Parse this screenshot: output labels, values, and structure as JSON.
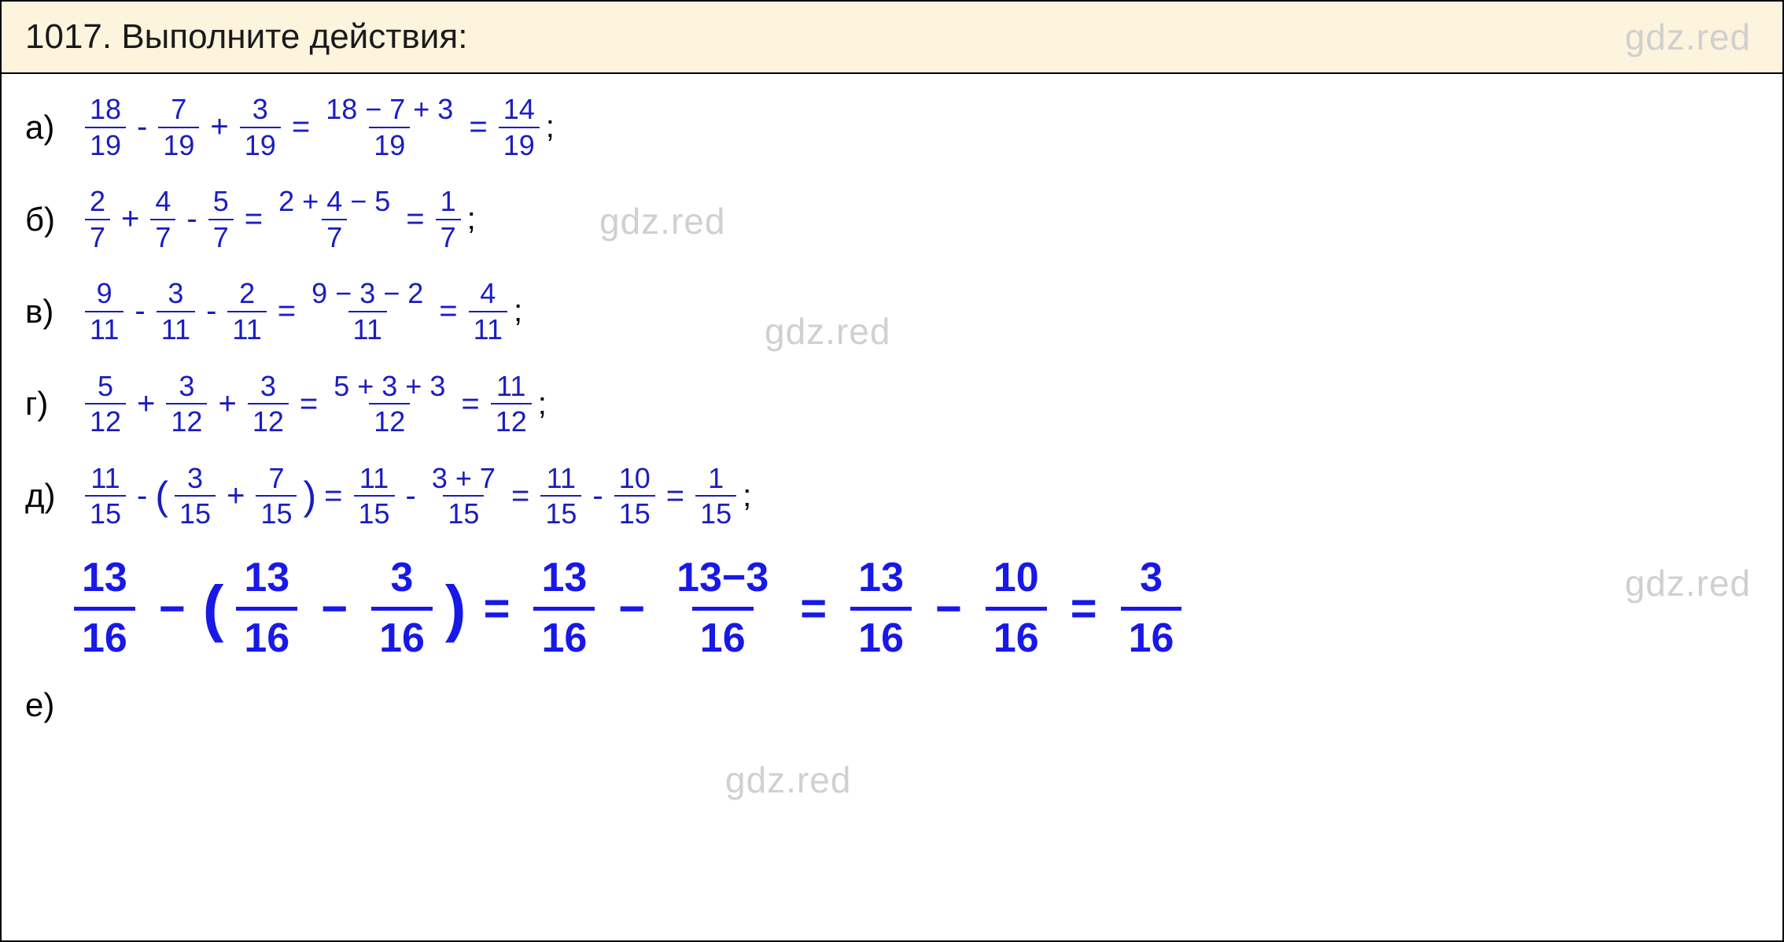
{
  "header": {
    "title": "1017. Выполните действия:"
  },
  "watermark": "gdz.red",
  "colors": {
    "header_bg": "#fcf4dd",
    "border": "#000000",
    "math_color": "#1a1dc0",
    "math_bold_color": "#1818e8",
    "text_color": "#000000",
    "watermark_color": "#d0d0d0"
  },
  "typography": {
    "header_fontsize": 44,
    "label_fontsize": 42,
    "frac_fontsize": 36,
    "op_fontsize": 40,
    "big_frac_fontsize": 52,
    "big_op_fontsize": 58
  },
  "rows": {
    "a": {
      "label": "а)",
      "f1_num": "18",
      "f1_den": "19",
      "op1": "-",
      "f2_num": "7",
      "f2_den": "19",
      "op2": "+",
      "f3_num": "3",
      "f3_den": "19",
      "eq1": "=",
      "f4_num": "18 − 7 + 3",
      "f4_den": "19",
      "eq2": "=",
      "f5_num": "14",
      "f5_den": "19",
      "end": ";"
    },
    "b": {
      "label": "б)",
      "f1_num": "2",
      "f1_den": "7",
      "op1": "+",
      "f2_num": "4",
      "f2_den": "7",
      "op2": "-",
      "f3_num": "5",
      "f3_den": "7",
      "eq1": "=",
      "f4_num": "2 + 4 − 5",
      "f4_den": "7",
      "eq2": "=",
      "f5_num": "1",
      "f5_den": "7",
      "end": ";"
    },
    "v": {
      "label": "в)",
      "f1_num": "9",
      "f1_den": "11",
      "op1": "-",
      "f2_num": "3",
      "f2_den": "11",
      "op2": "-",
      "f3_num": "2",
      "f3_den": "11",
      "eq1": "=",
      "f4_num": "9 − 3 − 2",
      "f4_den": "11",
      "eq2": "=",
      "f5_num": "4",
      "f5_den": "11",
      "end": ";"
    },
    "g": {
      "label": "г)",
      "f1_num": "5",
      "f1_den": "12",
      "op1": "+",
      "f2_num": "3",
      "f2_den": "12",
      "op2": "+",
      "f3_num": "3",
      "f3_den": "12",
      "eq1": "=",
      "f4_num": "5 + 3 + 3",
      "f4_den": "12",
      "eq2": "=",
      "f5_num": "11",
      "f5_den": "12",
      "end": ";"
    },
    "d": {
      "label": "д)",
      "f1_num": "11",
      "f1_den": "15",
      "op1": "-",
      "lparen": "(",
      "f2_num": "3",
      "f2_den": "15",
      "op2": "+",
      "f3_num": "7",
      "f3_den": "15",
      "rparen": ")",
      "eq1": "=",
      "f4_num": "11",
      "f4_den": "15",
      "op3": "-",
      "f5_num": "3 + 7",
      "f5_den": "15",
      "eq2": "=",
      "f6_num": "11",
      "f6_den": "15",
      "op4": "-",
      "f7_num": "10",
      "f7_den": "15",
      "eq3": "=",
      "f8_num": "1",
      "f8_den": "15",
      "end": ";"
    },
    "big": {
      "f1_num": "13",
      "f1_den": "16",
      "op1": "−",
      "lparen": "(",
      "f2_num": "13",
      "f2_den": "16",
      "op2": "−",
      "f3_num": "3",
      "f3_den": "16",
      "rparen": ")",
      "eq1": "=",
      "f4_num": "13",
      "f4_den": "16",
      "op3": "−",
      "f5_num": "13−3",
      "f5_den": "16",
      "eq2": "=",
      "f6_num": "13",
      "f6_den": "16",
      "op4": "−",
      "f7_num": "10",
      "f7_den": "16",
      "eq3": "=",
      "f8_num": "3",
      "f8_den": "16"
    },
    "e": {
      "label": "е)"
    }
  }
}
